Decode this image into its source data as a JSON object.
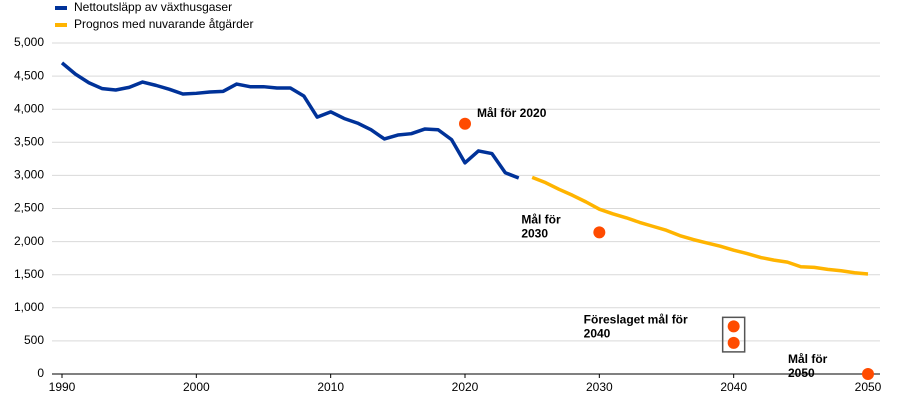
{
  "chart_data": {
    "type": "line",
    "x": [
      1990,
      1991,
      1992,
      1993,
      1994,
      1995,
      1996,
      1997,
      1998,
      1999,
      2000,
      2001,
      2002,
      2003,
      2004,
      2005,
      2006,
      2007,
      2008,
      2009,
      2010,
      2011,
      2012,
      2013,
      2014,
      2015,
      2016,
      2017,
      2018,
      2019,
      2020,
      2021,
      2022,
      2023,
      2024,
      2025,
      2026,
      2027,
      2028,
      2029,
      2030,
      2031,
      2032,
      2033,
      2034,
      2035,
      2036,
      2037,
      2038,
      2039,
      2040,
      2041,
      2042,
      2043,
      2044,
      2045,
      2046,
      2047,
      2048,
      2049,
      2050
    ],
    "series": [
      {
        "name": "Nettoutsläpp av växthusgaser",
        "color": "#003299",
        "values": [
          4700,
          4530,
          4400,
          4310,
          4290,
          4330,
          4410,
          4360,
          4300,
          4230,
          4240,
          4260,
          4270,
          4380,
          4340,
          4340,
          4320,
          4320,
          4200,
          3880,
          3960,
          3860,
          3790,
          3690,
          3550,
          3610,
          3630,
          3700,
          3690,
          3540,
          3190,
          3370,
          3330,
          3040,
          2960,
          null,
          null,
          null,
          null,
          null,
          null,
          null,
          null,
          null,
          null,
          null,
          null,
          null,
          null,
          null,
          null,
          null,
          null,
          null,
          null,
          null,
          null,
          null,
          null,
          null,
          null
        ]
      },
      {
        "name": "Prognos med nuvarande åtgärder",
        "color": "#ffb400",
        "values": [
          null,
          null,
          null,
          null,
          null,
          null,
          null,
          null,
          null,
          null,
          null,
          null,
          null,
          null,
          null,
          null,
          null,
          null,
          null,
          null,
          null,
          null,
          null,
          null,
          null,
          null,
          null,
          null,
          null,
          null,
          null,
          null,
          null,
          null,
          null,
          2970,
          2890,
          2790,
          2700,
          2600,
          2490,
          2420,
          2360,
          2290,
          2230,
          2170,
          2090,
          2030,
          1980,
          1930,
          1870,
          1820,
          1760,
          1720,
          1690,
          1620,
          1610,
          1580,
          1560,
          1530,
          1510
        ]
      }
    ],
    "targets": [
      {
        "label": [
          "Mål för 2020"
        ],
        "points": [
          {
            "x": 2020,
            "y": 3780
          }
        ]
      },
      {
        "label": [
          "Mål för",
          "2030"
        ],
        "points": [
          {
            "x": 2030,
            "y": 2140
          }
        ]
      },
      {
        "label": [
          "Föreslaget mål för",
          "2040"
        ],
        "points": [
          {
            "x": 2040,
            "y": 720
          },
          {
            "x": 2040,
            "y": 470
          }
        ]
      },
      {
        "label": [
          "Mål för",
          "2050"
        ],
        "points": [
          {
            "x": 2050,
            "y": 0
          }
        ]
      }
    ],
    "target_color": "#ff4b00",
    "xlim": [
      1990,
      2050
    ],
    "xticks": [
      1990,
      2000,
      2010,
      2020,
      2030,
      2040,
      2050
    ],
    "ylim": [
      0,
      5000
    ],
    "yticks": [
      0,
      {
        "value": 500,
        "label": "500"
      },
      {
        "value": 1000,
        "label": "1,000"
      },
      {
        "value": 1500,
        "label": "1,500"
      },
      {
        "value": 2000,
        "label": "2,000"
      },
      {
        "value": 2500,
        "label": "2,500"
      },
      {
        "value": 3000,
        "label": "3,000"
      },
      {
        "value": 3500,
        "label": "3,500"
      },
      {
        "value": 4000,
        "label": "4,000"
      },
      {
        "value": 4500,
        "label": "4,500"
      },
      {
        "value": 5000,
        "label": "5,000"
      }
    ],
    "grid": true
  }
}
